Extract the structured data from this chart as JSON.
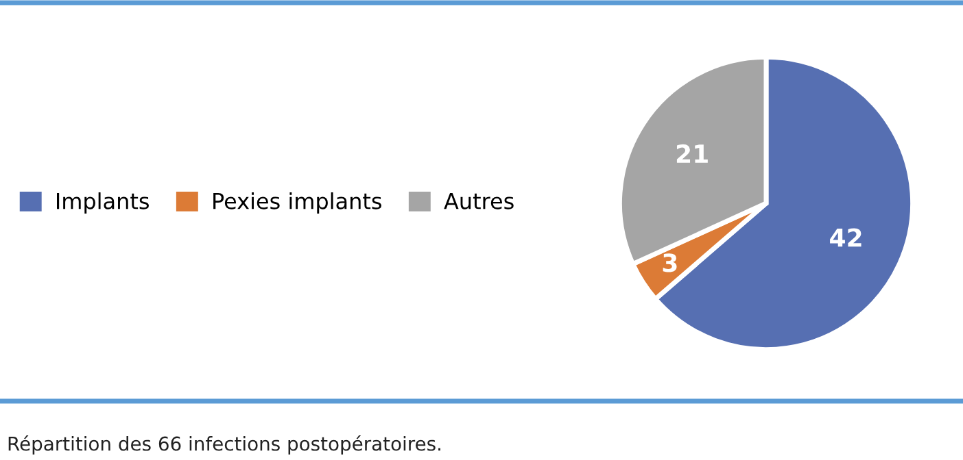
{
  "chart_data": {
    "type": "pie",
    "categories": [
      "Implants",
      "Pexies implants",
      "Autres"
    ],
    "values": [
      42,
      3,
      21
    ],
    "colors": [
      "#566fb2",
      "#dc7b36",
      "#a5a5a5"
    ],
    "data_labels": true,
    "legend": "left",
    "annotations": [
      "Répartition des 66 infections postopératoires."
    ]
  }
}
